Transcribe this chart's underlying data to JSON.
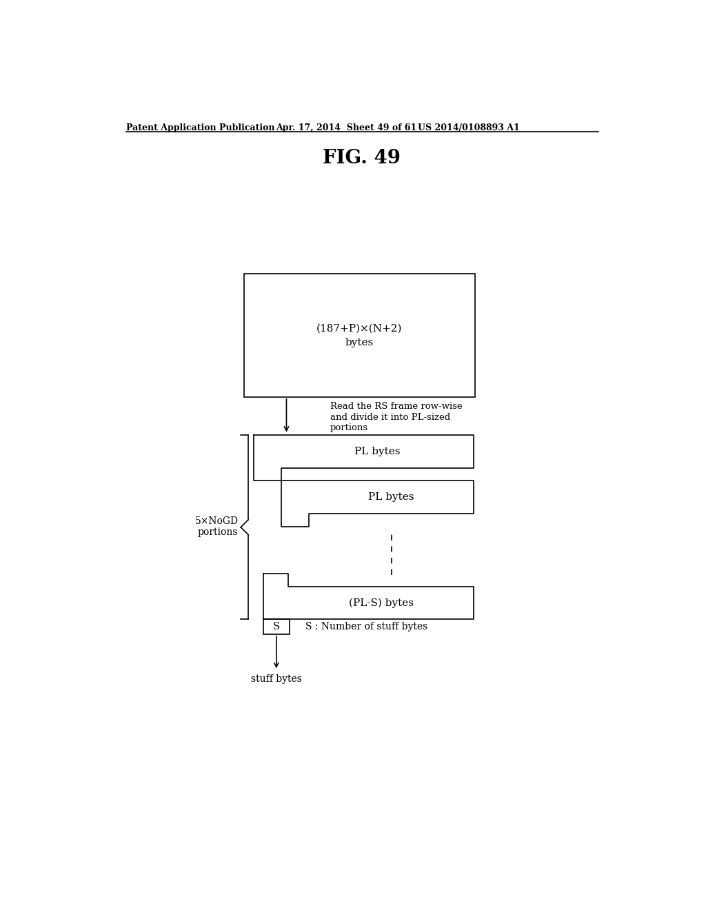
{
  "header_left": "Patent Application Publication",
  "header_mid": "Apr. 17, 2014  Sheet 49 of 61",
  "header_right": "US 2014/0108893 A1",
  "fig_title": "FIG. 49",
  "top_box_text1": "(187+P)×(N+2)",
  "top_box_text2": "bytes",
  "arrow_annotation1": "Read the RS frame row-wise",
  "arrow_annotation2": "and divide it into PL-sized",
  "arrow_annotation3": "portions",
  "pl_label": "PL bytes",
  "pls_label": "(PL-S) bytes",
  "s_label": "S",
  "stuff_label": "stuff bytes",
  "s_annotation": "S : Number of stuff bytes",
  "brace_label1": "5×NoGD",
  "brace_label2": "portions",
  "bg_color": "#ffffff",
  "line_color": "#000000"
}
